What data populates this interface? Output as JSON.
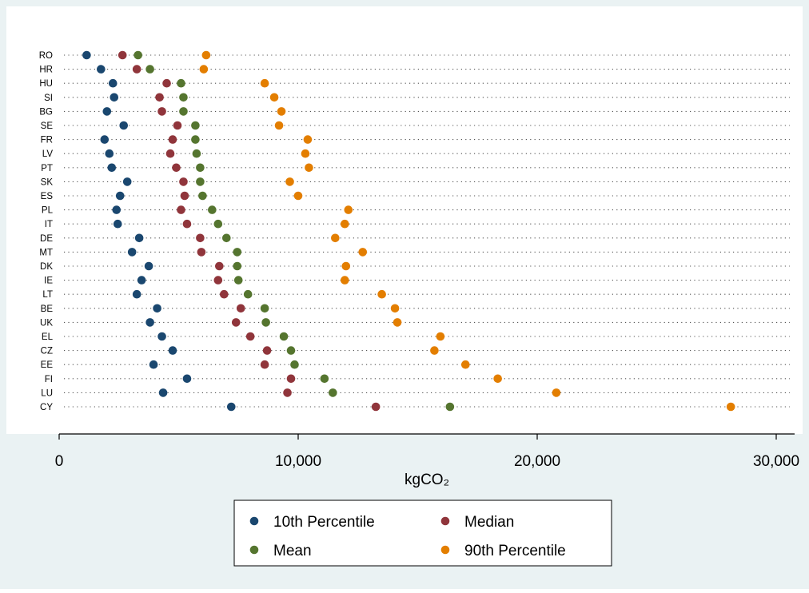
{
  "chart_data": {
    "type": "scatter",
    "orientation": "horizontal-dot-plot",
    "title": "",
    "xlabel": "kgCO₂",
    "ylabel": "",
    "xlim": [
      0,
      31000
    ],
    "xticks": [
      0,
      10000,
      20000,
      30000
    ],
    "xtick_labels": [
      "0",
      "10,000",
      "20,000",
      "30,000"
    ],
    "grid": "dotted horizontal line per category",
    "legend_placement": "bottom",
    "categories": [
      "RO",
      "HR",
      "HU",
      "SI",
      "BG",
      "SE",
      "FR",
      "LV",
      "PT",
      "SK",
      "ES",
      "PL",
      "IT",
      "DE",
      "MT",
      "DK",
      "IE",
      "LT",
      "BE",
      "UK",
      "EL",
      "CZ",
      "EE",
      "FI",
      "LU",
      "CY"
    ],
    "series": [
      {
        "name": "10th Percentile",
        "color": "#1a476f",
        "values": [
          1150,
          1750,
          2250,
          2300,
          2000,
          2700,
          1900,
          2100,
          2200,
          2850,
          2550,
          2400,
          2450,
          3350,
          3050,
          3750,
          3450,
          3250,
          4100,
          3800,
          4300,
          4750,
          3950,
          5350,
          4350,
          7200
        ]
      },
      {
        "name": "Median",
        "color": "#90353b",
        "values": [
          2650,
          3250,
          4500,
          4200,
          4300,
          4950,
          4750,
          4650,
          4900,
          5200,
          5250,
          5100,
          5350,
          5900,
          5950,
          6700,
          6650,
          6900,
          7600,
          7400,
          8000,
          8700,
          8600,
          9700,
          9550,
          13250
        ]
      },
      {
        "name": "Mean",
        "color": "#55752f",
        "values": [
          3300,
          3800,
          5100,
          5200,
          5200,
          5700,
          5700,
          5750,
          5900,
          5900,
          6000,
          6400,
          6650,
          7000,
          7450,
          7450,
          7500,
          7900,
          8600,
          8650,
          9400,
          9700,
          9850,
          11100,
          11450,
          16350
        ]
      },
      {
        "name": "90th Percentile",
        "color": "#e37e00",
        "values": [
          6150,
          6050,
          8600,
          9000,
          9300,
          9200,
          10400,
          10300,
          10450,
          9650,
          10000,
          12100,
          11950,
          11550,
          12700,
          12000,
          11950,
          13500,
          14050,
          14150,
          15950,
          15700,
          17000,
          18350,
          20800,
          28100
        ]
      }
    ]
  }
}
